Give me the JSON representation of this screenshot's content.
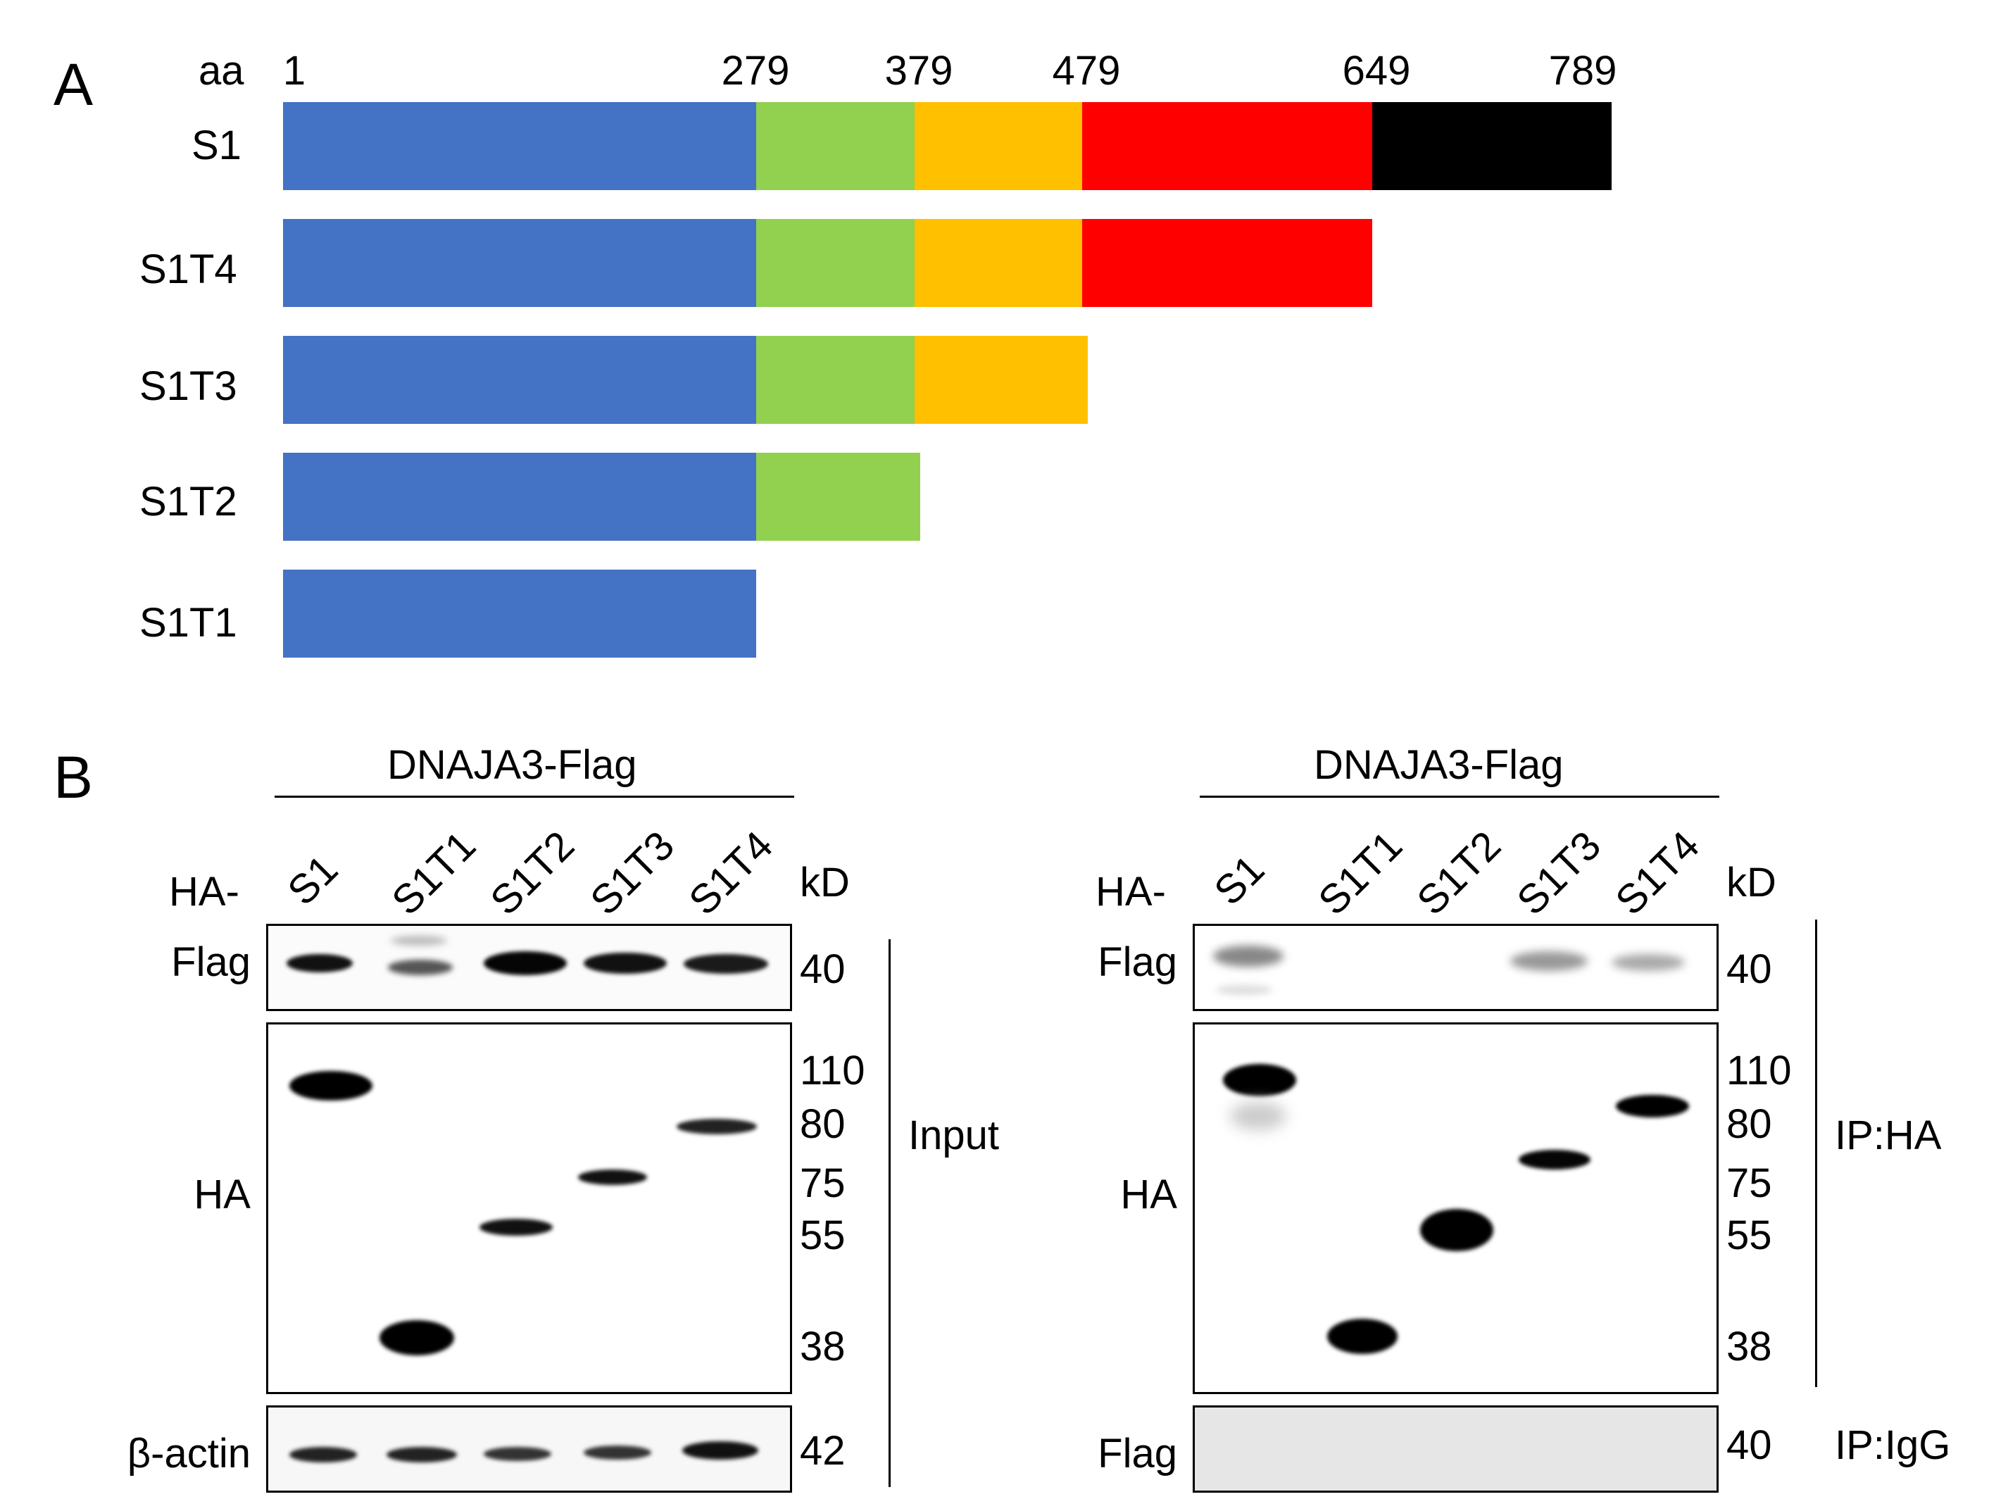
{
  "panel_a": {
    "letter": "A",
    "aa_label": "aa",
    "positions": [
      "1",
      "279",
      "379",
      "479",
      "649",
      "789"
    ],
    "colors": [
      "#4472C4",
      "#92D050",
      "#FFC000",
      "#FF0000",
      "#000000"
    ],
    "constructs": [
      {
        "name": "S1",
        "segments": 5
      },
      {
        "name": "S1T4",
        "segments": 4
      },
      {
        "name": "S1T3",
        "segments": 3
      },
      {
        "name": "S1T2",
        "segments": 2
      },
      {
        "name": "S1T1",
        "segments": 1
      }
    ]
  },
  "panel_b": {
    "letter": "B",
    "group_label": "DNAJA3-Flag",
    "ha_prefix": "HA-",
    "kd_label": "kD",
    "lanes": [
      "S1",
      "S1T1",
      "S1T2",
      "S1T3",
      "S1T4"
    ],
    "row_labels": {
      "flag": "Flag",
      "ha": "HA",
      "actin": "β-actin",
      "igg_flag": "Flag"
    },
    "markers": {
      "flag": "40",
      "ha": [
        "110",
        "80",
        "75",
        "55",
        "38"
      ],
      "actin": "42",
      "igg": "40"
    },
    "left_tag": "Input",
    "right_tags": {
      "ip_ha": "IP:HA",
      "ip_igg": "IP:IgG"
    }
  }
}
